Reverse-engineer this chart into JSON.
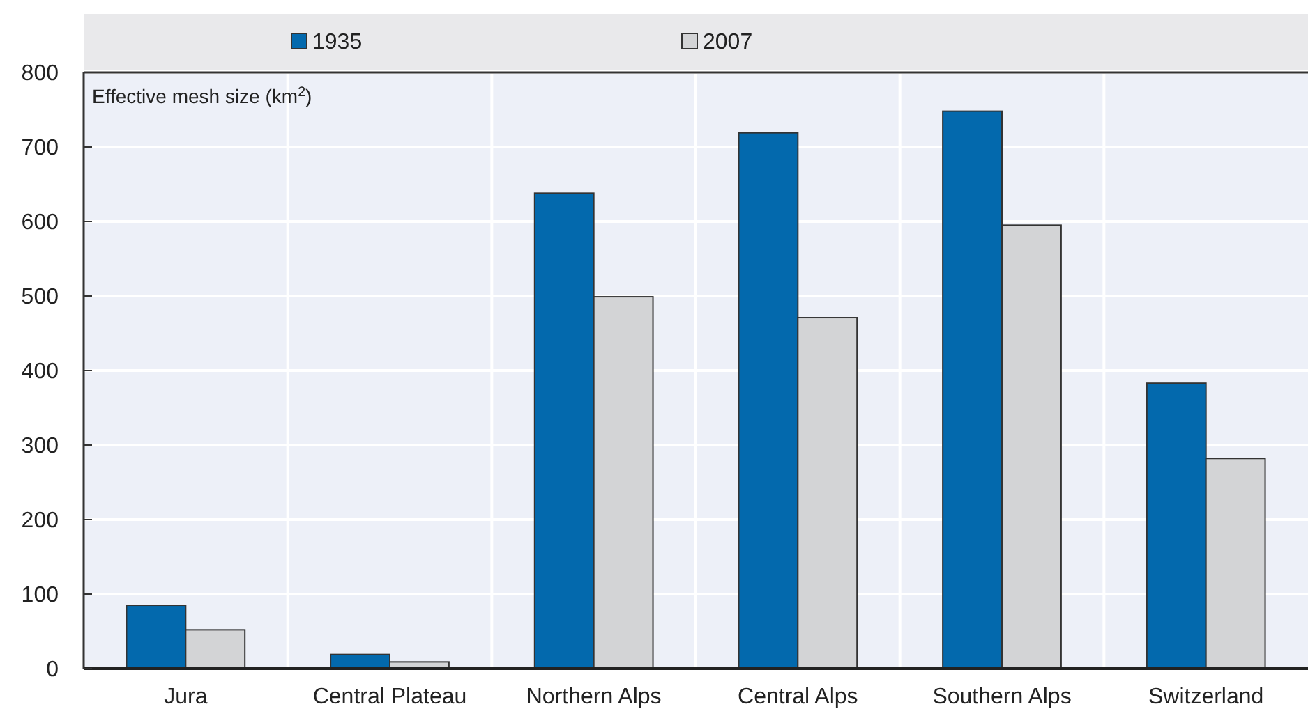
{
  "chart_data": {
    "type": "bar",
    "ylabel": "Effective mesh size (km$^{2}$)",
    "categories": [
      "Jura",
      "Central Plateau",
      "Northern Alps",
      "Central Alps",
      "Southern Alps",
      "Switzerland"
    ],
    "series": [
      {
        "name": "1935",
        "color": "#0369ad",
        "values": [
          85,
          19,
          638,
          719,
          748,
          383
        ]
      },
      {
        "name": "2007",
        "color": "#d3d4d6",
        "values": [
          52,
          9,
          499,
          471,
          595,
          282
        ]
      }
    ],
    "ylim": [
      0,
      800
    ],
    "yticks": [
      0,
      100,
      200,
      300,
      400,
      500,
      600,
      700,
      800
    ],
    "grid": true,
    "legend": "top"
  }
}
